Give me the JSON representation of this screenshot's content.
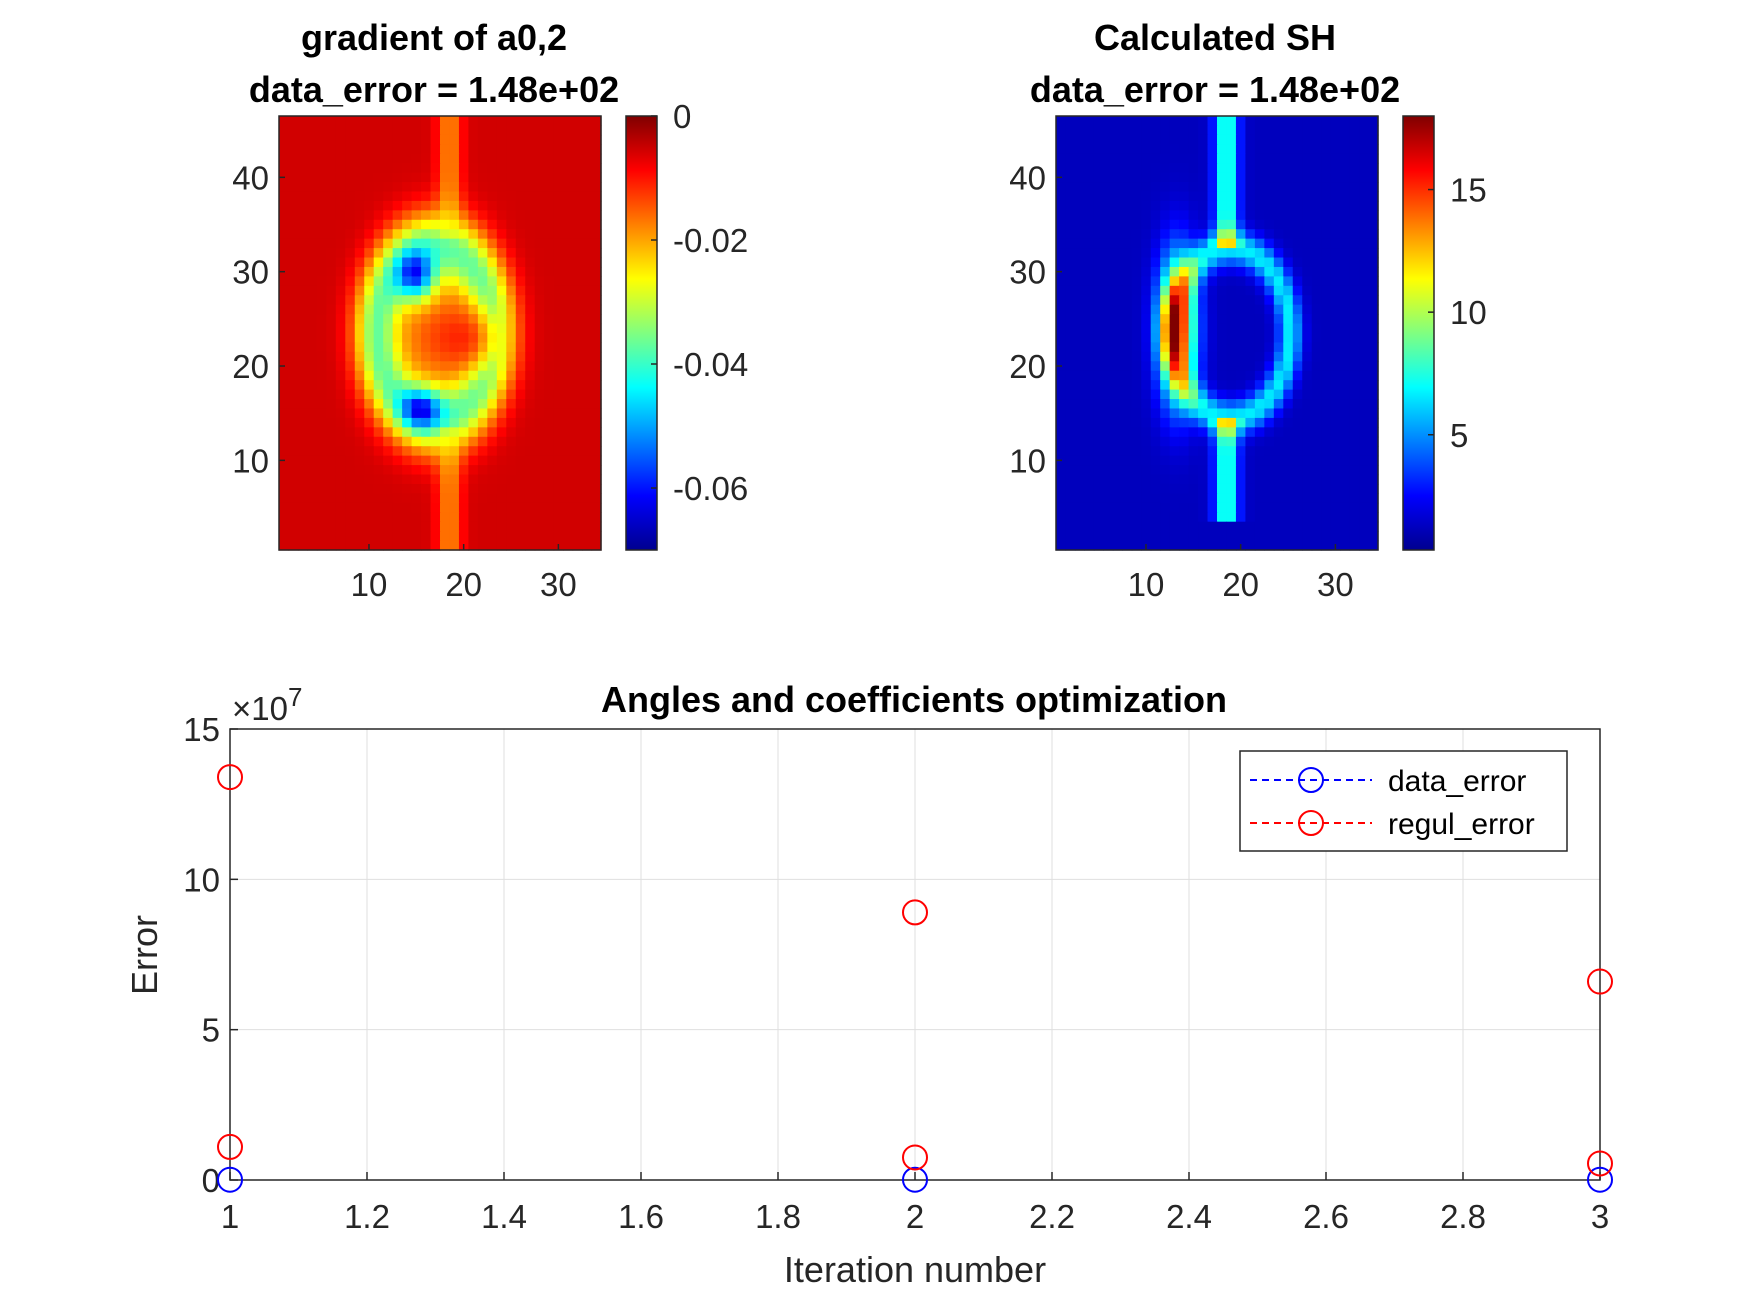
{
  "colors": {
    "jet_low": "#00008F",
    "jet_high": "#800000",
    "series_blue": "#0000FF",
    "series_red": "#FF0000",
    "grid": "#DFDFDF",
    "axis": "#262626"
  },
  "chart_data": [
    {
      "type": "heatmap",
      "title": "gradient of a0,2",
      "subtitle": "data_error = 1.48e+02",
      "x_range": [
        0.5,
        34.5
      ],
      "y_range": [
        0.5,
        46.5
      ],
      "x_ticks": [
        10,
        20,
        30
      ],
      "y_ticks": [
        10,
        20,
        30,
        40
      ],
      "colormap": "jet",
      "clim": [
        -0.07,
        0
      ],
      "colorbar_ticks": [
        0,
        -0.02,
        -0.04,
        -0.06
      ],
      "colorbar_tick_labels": [
        "0",
        "-0.02",
        "-0.04",
        "-0.06"
      ]
    },
    {
      "type": "heatmap",
      "title": "Calculated SH",
      "subtitle": "data_error = 1.48e+02",
      "x_range": [
        0.5,
        34.5
      ],
      "y_range": [
        0.5,
        46.5
      ],
      "x_ticks": [
        10,
        20,
        30
      ],
      "y_ticks": [
        10,
        20,
        30,
        40
      ],
      "colormap": "jet",
      "clim": [
        0.3,
        18
      ],
      "colorbar_ticks": [
        15,
        10,
        5
      ],
      "colorbar_tick_labels": [
        "15",
        "10",
        "5"
      ]
    },
    {
      "type": "scatter",
      "title": "Angles and coefficients optimization",
      "xlabel": "Iteration number",
      "ylabel": "Error",
      "y_exponent_label": "×10",
      "y_exponent": "7",
      "xlim": [
        1,
        3
      ],
      "ylim": [
        0,
        15
      ],
      "x_ticks": [
        1,
        1.2,
        1.4,
        1.6,
        1.8,
        2,
        2.2,
        2.4,
        2.6,
        2.8,
        3
      ],
      "x_tick_labels": [
        "1",
        "1.2",
        "1.4",
        "1.6",
        "1.8",
        "2",
        "2.2",
        "2.4",
        "2.6",
        "2.8",
        "3"
      ],
      "y_ticks": [
        0,
        5,
        10,
        15
      ],
      "y_tick_labels": [
        "0",
        "5",
        "10",
        "15"
      ],
      "grid": true,
      "legend_position": "top-right",
      "series": [
        {
          "name": "data_error",
          "color": "#0000FF",
          "line": "dashed",
          "marker": "circle",
          "x": [
            1,
            2,
            3
          ],
          "y": [
            0.01,
            0.01,
            0.01
          ]
        },
        {
          "name": "regul_error",
          "color": "#FF0000",
          "line": "dashed",
          "marker": "circle",
          "x": [
            1,
            1,
            2,
            2,
            3,
            3
          ],
          "y": [
            13.4,
            1.1,
            8.9,
            0.75,
            6.6,
            0.55
          ]
        }
      ]
    }
  ]
}
